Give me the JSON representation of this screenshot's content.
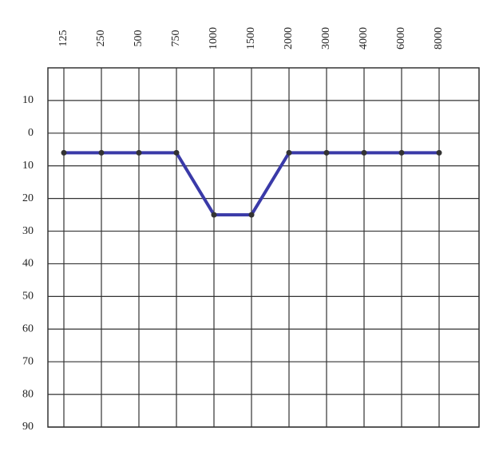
{
  "chart_data": {
    "type": "line",
    "categories": [
      "125",
      "250",
      "500",
      "750",
      "1000",
      "1500",
      "2000",
      "3000",
      "4000",
      "6000",
      "8000"
    ],
    "series": [
      {
        "name": null,
        "color": "#3a3aa8",
        "values": [
          6,
          6,
          6,
          6,
          25,
          25,
          6,
          6,
          6,
          6,
          6
        ]
      }
    ],
    "ylim": [
      -20,
      90
    ],
    "y_inverted": true,
    "yticks": [
      {
        "value": -10,
        "label": "10"
      },
      0,
      10,
      20,
      30,
      40,
      50,
      60,
      70,
      80,
      90
    ],
    "grid": true
  }
}
